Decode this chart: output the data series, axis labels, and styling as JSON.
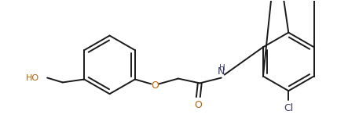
{
  "bg_color": "#ffffff",
  "bond_color": "#1a1a1a",
  "color_O": "#b8620a",
  "color_N": "#3a3a6a",
  "color_Cl": "#3a3a6a",
  "lw": 1.4,
  "fig_width": 4.43,
  "fig_height": 1.51,
  "dpi": 100,
  "xlim": [
    0,
    443
  ],
  "ylim": [
    0,
    151
  ],
  "r1cx": 138,
  "r1cy": 68,
  "r1r": 38,
  "r2cx": 370,
  "r2cy": 72,
  "r2r": 38
}
